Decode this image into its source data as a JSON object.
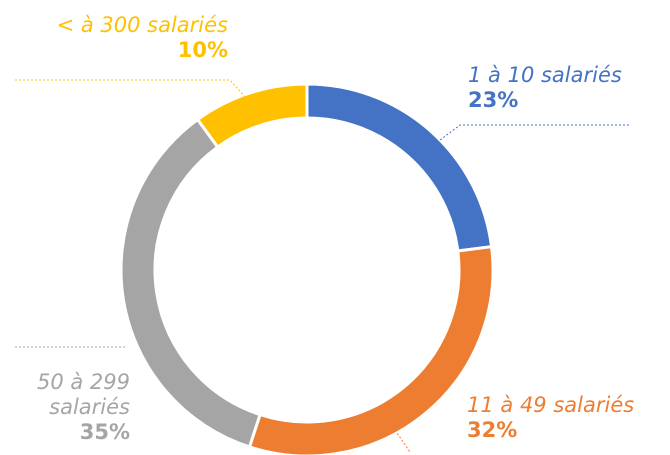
{
  "chart_data": {
    "type": "pie",
    "categories": [
      "1 à 10 salariés",
      "11 à 49 salariés",
      "50 à 299 salariés",
      "< à 300 salariés"
    ],
    "values": [
      23,
      32,
      35,
      10
    ],
    "value_labels": [
      "23%",
      "32%",
      "35%",
      "10%"
    ],
    "colors": [
      "#4472c4",
      "#ed7d31",
      "#a5a5a5",
      "#ffc000"
    ]
  }
}
